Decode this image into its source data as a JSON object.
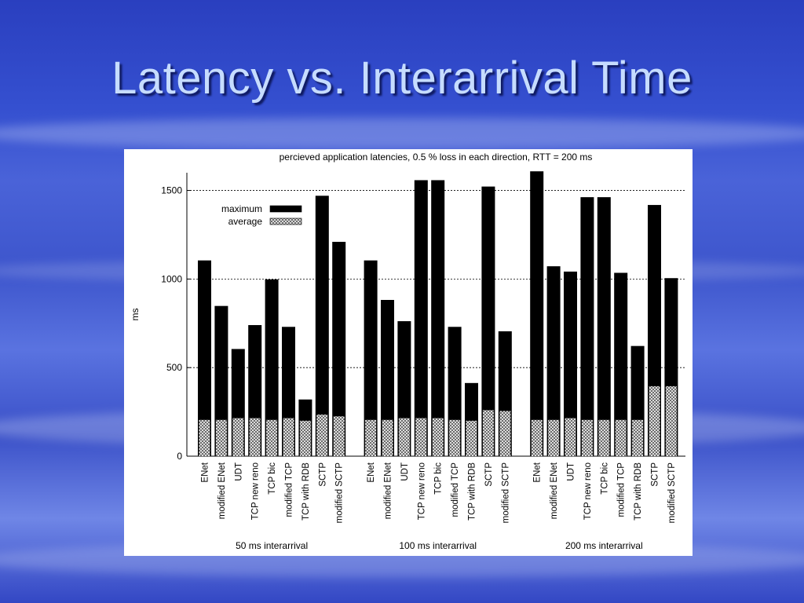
{
  "slide": {
    "title": "Latency vs. Interarrival Time"
  },
  "chart_data": {
    "type": "bar",
    "title": "percieved application latencies,  0.5 % loss in each direction,  RTT = 200 ms",
    "ylabel": "ms",
    "ylim": [
      0,
      1600
    ],
    "yticks": [
      0,
      500,
      1000,
      1500
    ],
    "grid": true,
    "legend_position": "top-left",
    "categories": [
      "ENet",
      "modified ENet",
      "UDT",
      "TCP new reno",
      "TCP bic",
      "modified TCP",
      "TCP with RDB",
      "SCTP",
      "modified SCTP"
    ],
    "legend": [
      {
        "name": "maximum",
        "pattern": "solid",
        "color": "#000000"
      },
      {
        "name": "average",
        "pattern": "crosshatch",
        "color": "#9a9a9a"
      }
    ],
    "groups": [
      {
        "label": "50 ms interarrival",
        "maximum": [
          1105,
          848,
          605,
          740,
          998,
          730,
          320,
          1470,
          1210
        ],
        "average": [
          205,
          205,
          215,
          215,
          205,
          215,
          200,
          235,
          225
        ]
      },
      {
        "label": "100 ms interarrival",
        "maximum": [
          1105,
          882,
          762,
          1558,
          1558,
          730,
          413,
          1522,
          705
        ],
        "average": [
          205,
          205,
          215,
          215,
          215,
          205,
          200,
          260,
          255
        ]
      },
      {
        "label": "200 ms interarrival",
        "maximum": [
          1608,
          1072,
          1042,
          1462,
          1462,
          1035,
          622,
          1418,
          1005
        ],
        "average": [
          205,
          205,
          215,
          205,
          205,
          205,
          205,
          395,
          395
        ]
      }
    ]
  }
}
